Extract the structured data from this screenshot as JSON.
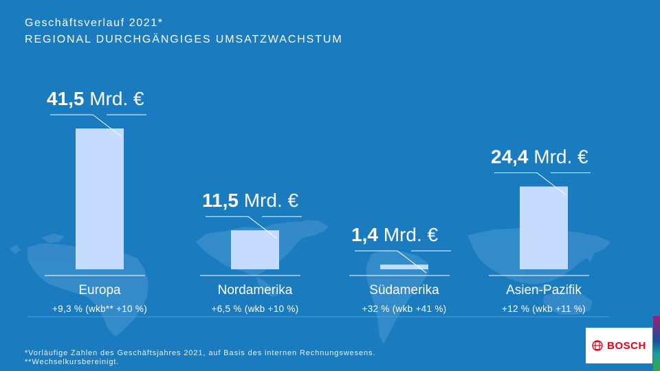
{
  "header": {
    "subtitle": "Geschäftsverlauf 2021*",
    "headline": "REGIONAL DURCHGÄNGIGES UMSATZWACHSTUM"
  },
  "colors": {
    "background": "#1a7bbf",
    "bar": "#c6dcff",
    "map": "#3d90cc",
    "text": "#ffffff"
  },
  "chart_data": {
    "type": "bar",
    "categories": [
      "Europa",
      "Nordamerika",
      "Südamerika",
      "Asien-Pazifik"
    ],
    "values": [
      41.5,
      11.5,
      1.4,
      24.4
    ],
    "value_labels": [
      {
        "number": "41,5",
        "unit": "Mrd. €"
      },
      {
        "number": "11,5",
        "unit": "Mrd. €"
      },
      {
        "number": "1,4",
        "unit": "Mrd. €"
      },
      {
        "number": "24,4",
        "unit": "Mrd. €"
      }
    ],
    "growth_labels": [
      "+9,3 % (wkb** +10 %)",
      "+6,5 % (wkb +10 %)",
      "+32 % (wkb +41 %)",
      "+12 % (wkb +11 %)"
    ],
    "ylim": [
      0,
      41.5
    ],
    "grid": false,
    "legend": "none"
  },
  "footnotes": [
    "*Vorläufige Zahlen des Geschäftsjahres 2021, auf Basis des internen Rechnungswesens.",
    "**Wechselkursbereinigt."
  ],
  "logo": {
    "text": "BOSCH",
    "icon": "bosch-armature-icon"
  }
}
